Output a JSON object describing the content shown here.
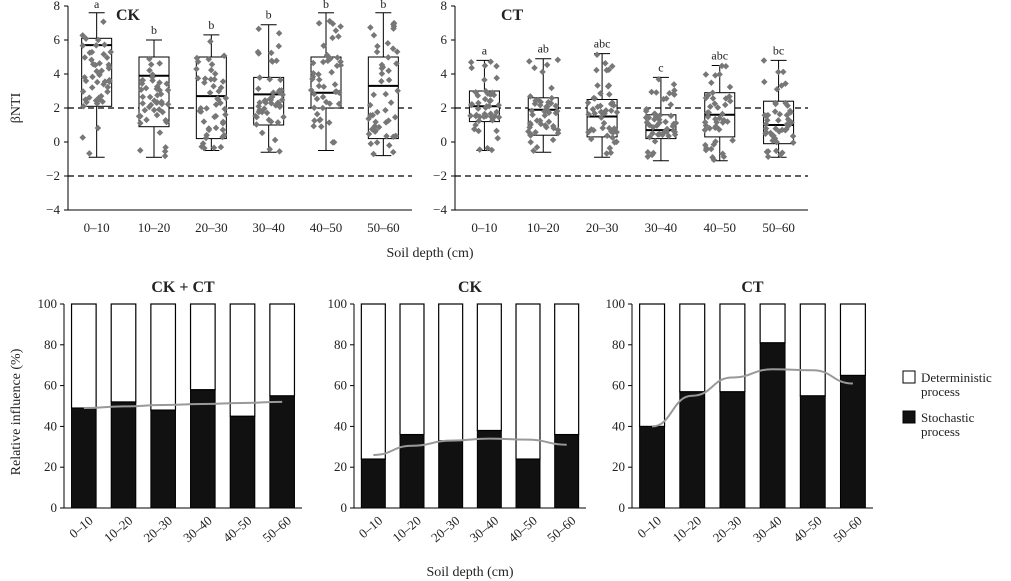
{
  "chart_data": [
    {
      "type": "box",
      "title": "CK",
      "ylabel": "βNTI",
      "xlabel": "Soil depth (cm)",
      "categories": [
        "0–10",
        "10–20",
        "20–30",
        "30–40",
        "40–50",
        "50–60"
      ],
      "ylim": [
        -4,
        8
      ],
      "yticks": [
        -4,
        -2,
        0,
        2,
        4,
        6,
        8
      ],
      "reference_lines": [
        2,
        -2
      ],
      "boxes": [
        {
          "min": -0.9,
          "q1": 2.1,
          "median": 5.7,
          "q3": 6.1,
          "max": 7.6,
          "letter": "a"
        },
        {
          "min": -0.9,
          "q1": 0.9,
          "median": 3.9,
          "q3": 5.0,
          "max": 6.0,
          "letter": "b"
        },
        {
          "min": -0.5,
          "q1": 0.2,
          "median": 2.7,
          "q3": 5.0,
          "max": 6.3,
          "letter": "b"
        },
        {
          "min": -0.6,
          "q1": 1.0,
          "median": 2.8,
          "q3": 3.8,
          "max": 6.9,
          "letter": "b"
        },
        {
          "min": -0.5,
          "q1": 2.0,
          "median": 2.9,
          "q3": 5.0,
          "max": 7.6,
          "letter": "b"
        },
        {
          "min": -0.8,
          "q1": 0.2,
          "median": 3.3,
          "q3": 5.0,
          "max": 7.6,
          "letter": "b"
        }
      ]
    },
    {
      "type": "box",
      "title": "CT",
      "ylabel": "",
      "xlabel": "",
      "categories": [
        "0–10",
        "10–20",
        "20–30",
        "30–40",
        "40–50",
        "50–60"
      ],
      "ylim": [
        -4,
        8
      ],
      "yticks": [
        -4,
        -2,
        0,
        2,
        4,
        6,
        8
      ],
      "reference_lines": [
        2,
        -2
      ],
      "boxes": [
        {
          "min": -0.5,
          "q1": 1.2,
          "median": 2.1,
          "q3": 3.0,
          "max": 4.8,
          "letter": "a"
        },
        {
          "min": -0.6,
          "q1": 0.4,
          "median": 1.9,
          "q3": 2.6,
          "max": 4.9,
          "letter": "ab"
        },
        {
          "min": -0.9,
          "q1": 0.3,
          "median": 1.5,
          "q3": 2.5,
          "max": 5.2,
          "letter": "abc"
        },
        {
          "min": -1.1,
          "q1": 0.2,
          "median": 0.7,
          "q3": 1.6,
          "max": 3.8,
          "letter": "c"
        },
        {
          "min": -1.1,
          "q1": 0.3,
          "median": 1.6,
          "q3": 2.9,
          "max": 4.5,
          "letter": "abc"
        },
        {
          "min": -0.9,
          "q1": -0.1,
          "median": 1.0,
          "q3": 2.4,
          "max": 4.8,
          "letter": "bc"
        }
      ]
    },
    {
      "type": "stacked_bar",
      "title": "CK + CT",
      "ylabel": "Relative influence (%)",
      "xlabel": "",
      "categories": [
        "0–10",
        "10–20",
        "20–30",
        "30–40",
        "40–50",
        "50–60"
      ],
      "ylim": [
        0,
        100
      ],
      "yticks": [
        0,
        20,
        40,
        60,
        80,
        100
      ],
      "series": [
        {
          "name": "Stochastic process",
          "color": "#111111",
          "values": [
            49,
            52,
            48,
            58,
            45,
            55
          ]
        },
        {
          "name": "Deterministic process",
          "color": "#ffffff",
          "values": [
            51,
            48,
            52,
            42,
            55,
            45
          ]
        }
      ],
      "trend": [
        49,
        49.8,
        50.5,
        51,
        51.5,
        52
      ]
    },
    {
      "type": "stacked_bar",
      "title": "CK",
      "ylabel": "",
      "xlabel": "Soil depth (cm)",
      "categories": [
        "0–10",
        "10–20",
        "20–30",
        "30–40",
        "40–50",
        "50–60"
      ],
      "ylim": [
        0,
        100
      ],
      "yticks": [
        0,
        20,
        40,
        60,
        80,
        100
      ],
      "series": [
        {
          "name": "Stochastic process",
          "color": "#111111",
          "values": [
            24,
            36,
            33,
            38,
            24,
            36
          ]
        },
        {
          "name": "Deterministic process",
          "color": "#ffffff",
          "values": [
            76,
            64,
            67,
            62,
            76,
            64
          ]
        }
      ],
      "trend": [
        26,
        30.5,
        33,
        34,
        33.5,
        31
      ]
    },
    {
      "type": "stacked_bar",
      "title": "CT",
      "ylabel": "",
      "xlabel": "",
      "categories": [
        "0–10",
        "10–20",
        "20–30",
        "30–40",
        "40–50",
        "50–60"
      ],
      "ylim": [
        0,
        100
      ],
      "yticks": [
        0,
        20,
        40,
        60,
        80,
        100
      ],
      "series": [
        {
          "name": "Stochastic process",
          "color": "#111111",
          "values": [
            40,
            57,
            57,
            81,
            55,
            65
          ]
        },
        {
          "name": "Deterministic process",
          "color": "#ffffff",
          "values": [
            60,
            43,
            43,
            19,
            45,
            35
          ]
        }
      ],
      "trend": [
        40,
        55,
        64,
        68,
        67.5,
        61
      ]
    }
  ],
  "legend": {
    "items": [
      {
        "label": "Deterministic process",
        "color": "#ffffff"
      },
      {
        "label": "Stochastic process",
        "color": "#111111"
      }
    ]
  }
}
